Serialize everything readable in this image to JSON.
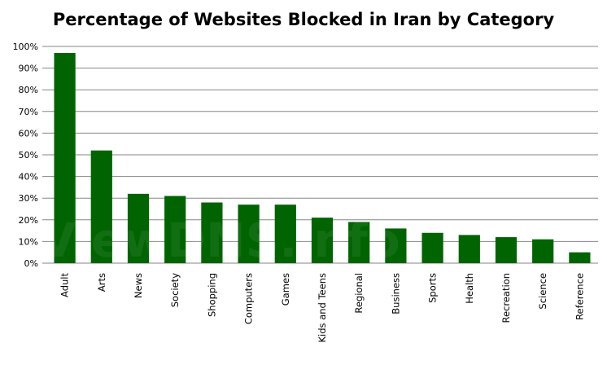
{
  "chart_data": {
    "type": "bar",
    "title": "Percentage of Websites Blocked in Iran by Category",
    "xlabel": "",
    "ylabel": "",
    "categories": [
      "Adult",
      "Arts",
      "News",
      "Society",
      "Shopping",
      "Computers",
      "Games",
      "Kids and Teens",
      "Regional",
      "Business",
      "Sports",
      "Health",
      "Recreation",
      "Science",
      "Reference"
    ],
    "values": [
      97,
      52,
      32,
      31,
      28,
      27,
      27,
      21,
      19,
      16,
      14,
      13,
      12,
      11,
      5
    ],
    "ylim": [
      0,
      100
    ],
    "yticks": [
      "0%",
      "10%",
      "20%",
      "30%",
      "40%",
      "50%",
      "60%",
      "70%",
      "80%",
      "90%",
      "100%"
    ],
    "grid": true,
    "legend": "none",
    "bar_color": "#006400",
    "watermark": "ViewDNS.info"
  }
}
